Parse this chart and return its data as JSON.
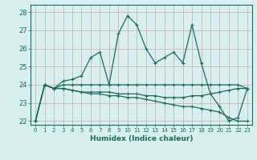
{
  "xlabel": "Humidex (Indice chaleur)",
  "bg_color": "#d8eff0",
  "grid_color": "#b8d8d8",
  "line_color": "#1e6b5e",
  "ylim": [
    21.8,
    28.4
  ],
  "xlim": [
    -0.5,
    23.5
  ],
  "series_main": [
    22.0,
    24.0,
    23.8,
    24.2,
    24.3,
    24.5,
    25.5,
    25.8,
    24.0,
    26.8,
    27.8,
    27.3,
    26.0,
    25.2,
    25.5,
    25.8,
    25.2,
    27.3,
    25.2,
    23.5,
    22.8,
    22.0,
    22.2,
    23.8
  ],
  "series_flat": [
    22.0,
    24.0,
    23.8,
    24.0,
    24.0,
    24.0,
    24.0,
    24.0,
    24.0,
    24.0,
    24.0,
    24.0,
    24.0,
    24.0,
    24.0,
    24.0,
    24.0,
    24.0,
    24.0,
    24.0,
    24.0,
    24.0,
    24.0,
    23.8
  ],
  "series_down": [
    22.0,
    24.0,
    23.8,
    23.8,
    23.7,
    23.6,
    23.5,
    23.5,
    23.4,
    23.4,
    23.3,
    23.3,
    23.2,
    23.1,
    23.0,
    22.9,
    22.8,
    22.8,
    22.7,
    22.6,
    22.5,
    22.2,
    22.0,
    22.0
  ],
  "series_mid": [
    22.0,
    24.0,
    23.8,
    23.8,
    23.7,
    23.6,
    23.6,
    23.6,
    23.6,
    23.5,
    23.5,
    23.5,
    23.4,
    23.4,
    23.3,
    23.3,
    23.3,
    23.4,
    23.4,
    23.5,
    23.6,
    23.7,
    23.8,
    23.8
  ],
  "x": [
    0,
    1,
    2,
    3,
    4,
    5,
    6,
    7,
    8,
    9,
    10,
    11,
    12,
    13,
    14,
    15,
    16,
    17,
    18,
    19,
    20,
    21,
    22,
    23
  ],
  "xticks": [
    0,
    1,
    2,
    3,
    4,
    5,
    6,
    7,
    8,
    9,
    10,
    11,
    12,
    13,
    14,
    15,
    16,
    17,
    18,
    19,
    20,
    21,
    22,
    23
  ],
  "yticks": [
    22,
    23,
    24,
    25,
    26,
    27,
    28
  ]
}
